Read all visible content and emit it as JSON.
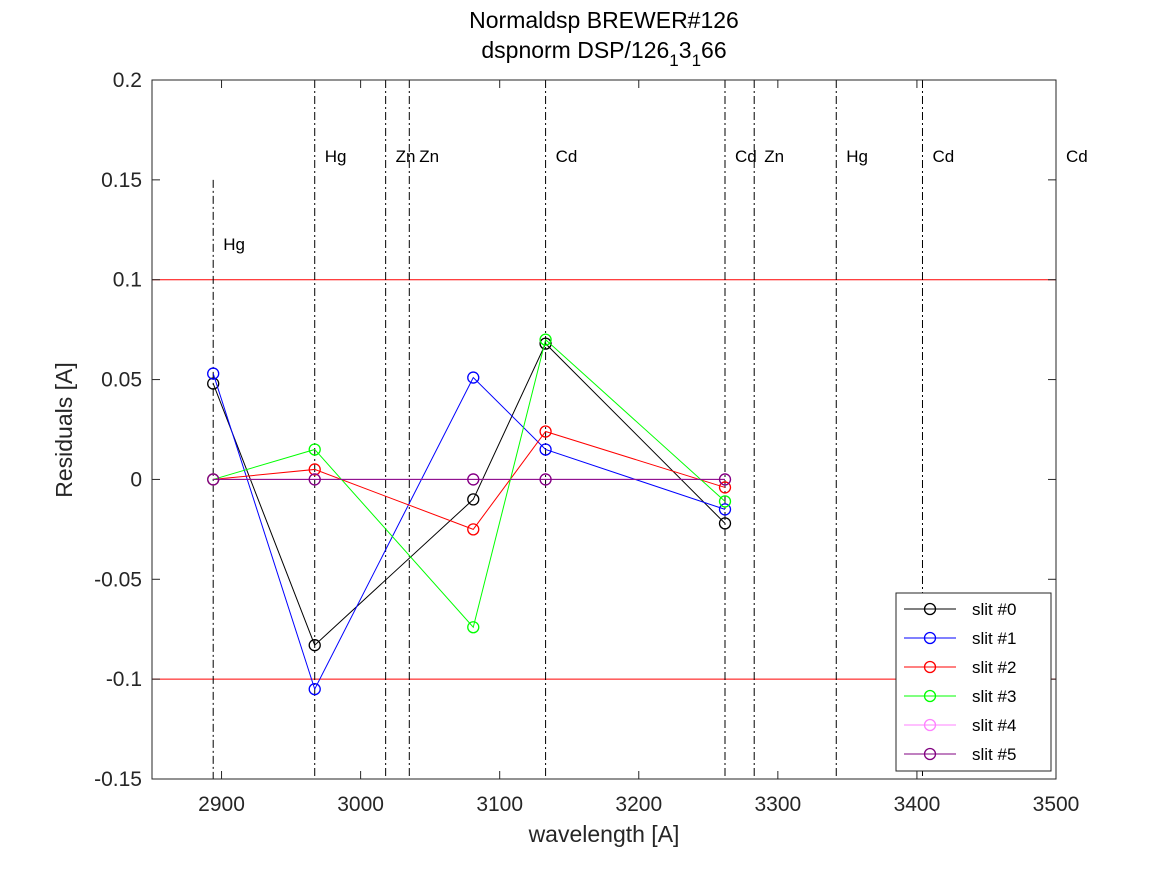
{
  "chart_data": {
    "type": "line",
    "title_line1": "Normaldsp BREWER#126",
    "title_line2_parts": [
      {
        "text": "dspnorm DSP/126",
        "sub": false
      },
      {
        "text": "1",
        "sub": true
      },
      {
        "text": "3",
        "sub": false
      },
      {
        "text": "1",
        "sub": true
      },
      {
        "text": "66",
        "sub": false
      }
    ],
    "xlabel": "wavelength [A]",
    "ylabel": "Residuals [A]",
    "xlim": [
      2850,
      3500
    ],
    "ylim": [
      -0.15,
      0.2
    ],
    "xticks": [
      2900,
      3000,
      3100,
      3200,
      3300,
      3400,
      3500
    ],
    "yticks": [
      -0.15,
      -0.1,
      -0.05,
      0,
      0.05,
      0.1,
      0.15,
      0.2
    ],
    "ytick_labels": [
      "-0.15",
      "-0.1",
      "-0.05",
      "0",
      "0.05",
      "0.1",
      "0.15",
      "0.2"
    ],
    "limit_lines": [
      {
        "y": 0.1,
        "color": "#ff0000"
      },
      {
        "y": -0.1,
        "color": "#ff0000"
      }
    ],
    "x": [
      2894,
      2967,
      3081,
      3133,
      3262
    ],
    "series": [
      {
        "name": "slit #0",
        "color": "#000000",
        "values": [
          0.048,
          -0.083,
          -0.01,
          0.068,
          -0.022
        ]
      },
      {
        "name": "slit #1",
        "color": "#0000ff",
        "values": [
          0.053,
          -0.105,
          0.051,
          0.015,
          -0.015
        ]
      },
      {
        "name": "slit #2",
        "color": "#ff0000",
        "values": [
          0.0,
          0.005,
          -0.025,
          0.024,
          -0.004
        ]
      },
      {
        "name": "slit #3",
        "color": "#00ff00",
        "values": [
          0.0,
          0.015,
          -0.074,
          0.07,
          -0.011
        ]
      },
      {
        "name": "slit #4",
        "color": "#ff80ff",
        "values": [
          0.0,
          0.0,
          0.0,
          0.0,
          0.0
        ]
      },
      {
        "name": "slit #5",
        "color": "#800080",
        "values": [
          0.0,
          0.0,
          0.0,
          0.0,
          0.0
        ]
      }
    ],
    "reference_lines": [
      {
        "x": 2894,
        "label": "Hg",
        "y_top": 0.15,
        "label_y": 0.118
      },
      {
        "x": 2967,
        "label": "Hg",
        "y_top": 0.2,
        "label_y": 0.162
      },
      {
        "x": 3018,
        "label": "Zn",
        "y_top": 0.2,
        "label_y": 0.162
      },
      {
        "x": 3035,
        "label": "Zn",
        "y_top": 0.2,
        "label_y": 0.162
      },
      {
        "x": 3133,
        "label": "Cd",
        "y_top": 0.2,
        "label_y": 0.162
      },
      {
        "x": 3262,
        "label": "Cd",
        "y_top": 0.2,
        "label_y": 0.162
      },
      {
        "x": 3283,
        "label": "Zn",
        "y_top": 0.2,
        "label_y": 0.162
      },
      {
        "x": 3342,
        "label": "Hg",
        "y_top": 0.2,
        "label_y": 0.162
      },
      {
        "x": 3404,
        "label": "Cd",
        "y_top": 0.2,
        "label_y": 0.162
      },
      {
        "x": 3500,
        "label": "Cd",
        "y_top": 0.2,
        "label_y": 0.162
      }
    ],
    "grid": false,
    "legend_position": "bottom-right"
  }
}
